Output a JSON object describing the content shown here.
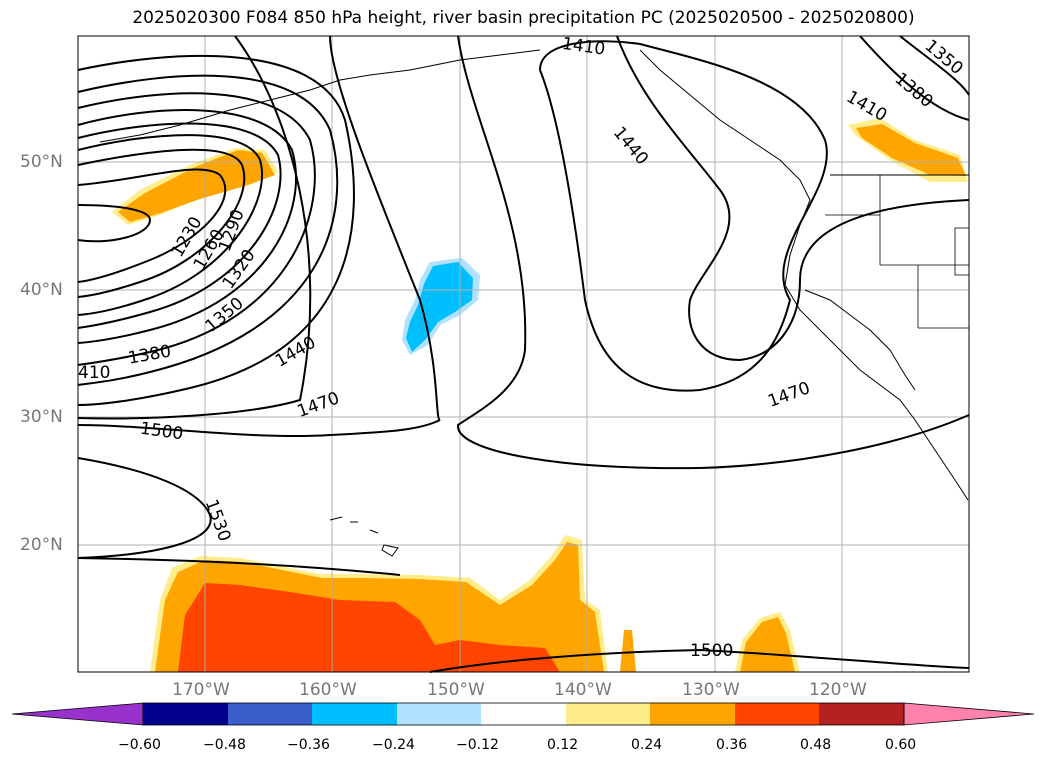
{
  "title": "2025020300 F084 850 hPa height, river basin precipitation PC (2025020500 - 2025020800)",
  "latitude_labels": [
    "50°N",
    "40°N",
    "30°N",
    "20°N"
  ],
  "longitude_labels": [
    "170°W",
    "160°W",
    "150°W",
    "140°W",
    "130°W",
    "120°W"
  ],
  "contour_labels": [
    "1410",
    "1350",
    "1380",
    "1410",
    "1440",
    "1230",
    "1260",
    "1290",
    "1320",
    "1350",
    "1380",
    "410",
    "1440",
    "1470",
    "1470",
    "1500",
    "1530",
    "1500"
  ],
  "colorbar": {
    "ticks": [
      "−0.60",
      "−0.48",
      "−0.36",
      "−0.24",
      "−0.12",
      "0.12",
      "0.24",
      "0.36",
      "0.48",
      "0.60"
    ],
    "colors": [
      "#9932cc",
      "#00008b",
      "#3a5fcd",
      "#00bfff",
      "#b0e2ff",
      "#ffffff",
      "#ffec8b",
      "#ffa500",
      "#ff4500",
      "#b22222",
      "#ff82ab"
    ]
  },
  "colors": {
    "precip_pos_low": "#ffec8b",
    "precip_pos_mid": "#ffa500",
    "precip_pos_high": "#ff4500",
    "precip_neg_mid": "#00bfff",
    "precip_neg_low": "#b0e2ff",
    "grid": "#b0b0b0",
    "contour": "#000000"
  }
}
